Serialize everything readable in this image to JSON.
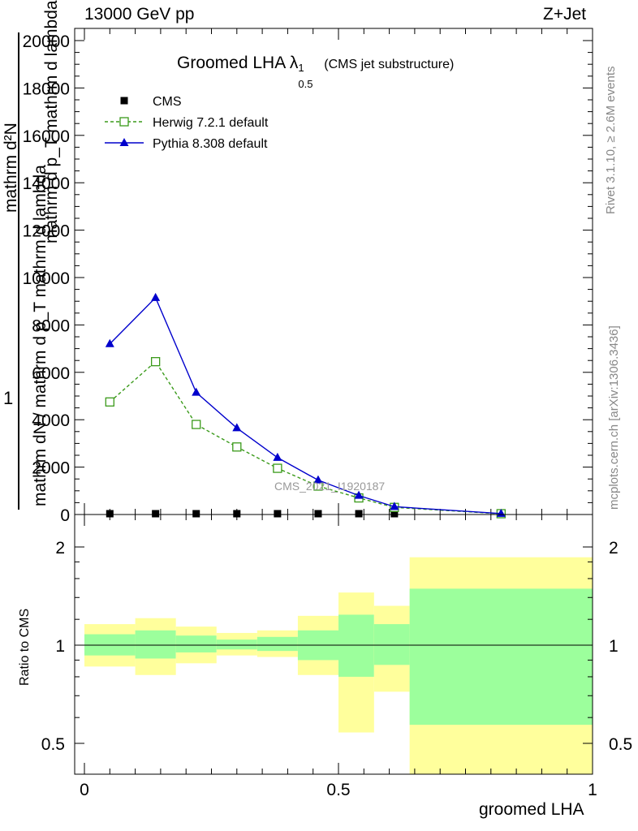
{
  "header": {
    "energy_label": "13000 GeV pp",
    "process_label": "Z+Jet"
  },
  "side_labels": {
    "rivet": "Rivet 3.1.10, ≥ 2.6M events",
    "mcplots": "mcplots.cern.ch [arXiv:1306.3436]"
  },
  "watermark": "CMS_2021_I1920187",
  "chart_data": [
    {
      "type": "line",
      "title_main": "Groomed LHA",
      "title_symbol": "λ",
      "title_sup": "1",
      "title_sub": "0.5",
      "title_suffix": "(CMS jet substructure)",
      "ylabel_numerator": "1",
      "ylabel_denominator": "mathrm dN / mathrm d p_T mathrm d lambda",
      "ylabel_overlay_1": "mathrm d²N",
      "ylabel_overlay_2": "mathrm d p_T mathrm d lambda",
      "xlim": [
        0,
        1
      ],
      "ylim": [
        0,
        20000
      ],
      "y_ticks": [
        0,
        2000,
        4000,
        6000,
        8000,
        10000,
        12000,
        14000,
        16000,
        18000,
        20000
      ],
      "y_tick_labels": [
        "0",
        "2000",
        "4000",
        "6000",
        "8000",
        "10000",
        "12000",
        "14000",
        "16000",
        "18000",
        "20000"
      ],
      "legend_position": "top-left",
      "series": [
        {
          "name": "CMS",
          "color": "#000000",
          "marker": "square-filled",
          "x": [
            0.05,
            0.14,
            0.22,
            0.3,
            0.38,
            0.46,
            0.54,
            0.61,
            0.82
          ],
          "y": [
            0,
            0,
            0,
            0,
            0,
            0,
            0,
            0,
            0
          ]
        },
        {
          "name": "Herwig 7.2.1 default",
          "color": "#3a9a1a",
          "marker": "square-open",
          "line": "dashed",
          "x": [
            0.05,
            0.14,
            0.22,
            0.3,
            0.38,
            0.46,
            0.54,
            0.61,
            0.82
          ],
          "y": [
            4750,
            6450,
            3800,
            2850,
            1950,
            1200,
            700,
            300,
            30
          ]
        },
        {
          "name": "Pythia 8.308 default",
          "color": "#0000cc",
          "marker": "triangle-filled",
          "line": "solid",
          "x": [
            0.05,
            0.14,
            0.22,
            0.3,
            0.38,
            0.46,
            0.54,
            0.61,
            0.82
          ],
          "y": [
            7200,
            9150,
            5150,
            3650,
            2400,
            1450,
            800,
            330,
            40
          ]
        }
      ]
    },
    {
      "type": "area",
      "ylabel": "Ratio to CMS",
      "xlabel": "groomed LHA",
      "xlim": [
        0,
        1
      ],
      "ylim": [
        0.35,
        2.25
      ],
      "y_ticks": [
        0.5,
        1,
        2
      ],
      "y_tick_labels": [
        "0.5",
        "1",
        "2"
      ],
      "x_ticks": [
        0,
        0.5,
        1
      ],
      "x_tick_labels": [
        "0",
        "0.5",
        "1"
      ],
      "reference_line": 1,
      "bands": [
        {
          "name": "stat",
          "color": "#9cff9c"
        },
        {
          "name": "total",
          "color": "#ffff9c"
        }
      ],
      "bins": [
        {
          "x0": 0.0,
          "x1": 0.1,
          "stat": [
            0.93,
            1.08
          ],
          "total": [
            0.86,
            1.16
          ]
        },
        {
          "x0": 0.1,
          "x1": 0.18,
          "stat": [
            0.91,
            1.11
          ],
          "total": [
            0.81,
            1.21
          ]
        },
        {
          "x0": 0.18,
          "x1": 0.26,
          "stat": [
            0.95,
            1.07
          ],
          "total": [
            0.88,
            1.14
          ]
        },
        {
          "x0": 0.26,
          "x1": 0.34,
          "stat": [
            0.97,
            1.04
          ],
          "total": [
            0.93,
            1.09
          ]
        },
        {
          "x0": 0.34,
          "x1": 0.42,
          "stat": [
            0.96,
            1.06
          ],
          "total": [
            0.92,
            1.11
          ]
        },
        {
          "x0": 0.42,
          "x1": 0.5,
          "stat": [
            0.9,
            1.11
          ],
          "total": [
            0.81,
            1.23
          ]
        },
        {
          "x0": 0.5,
          "x1": 0.57,
          "stat": [
            0.8,
            1.24
          ],
          "total": [
            0.54,
            1.45
          ]
        },
        {
          "x0": 0.57,
          "x1": 0.64,
          "stat": [
            0.87,
            1.16
          ],
          "total": [
            0.72,
            1.32
          ]
        },
        {
          "x0": 0.64,
          "x1": 1.0,
          "stat": [
            0.57,
            1.49
          ],
          "total": [
            0.35,
            1.86
          ]
        }
      ]
    }
  ]
}
